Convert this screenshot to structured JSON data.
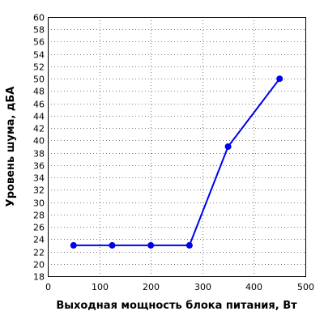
{
  "chart_data": {
    "type": "line",
    "title": "",
    "xlabel": "Выходная мощность блока питания, Вт",
    "ylabel": "Уровень шума, дБА",
    "xlim": [
      0,
      500
    ],
    "ylim": [
      18,
      60
    ],
    "xticks": [
      0,
      100,
      200,
      300,
      400,
      500
    ],
    "yticks": [
      18,
      20,
      22,
      24,
      26,
      28,
      30,
      32,
      34,
      36,
      38,
      40,
      42,
      44,
      46,
      48,
      50,
      52,
      54,
      56,
      58,
      60
    ],
    "grid": true,
    "series": [
      {
        "color": "#0000ee",
        "x": [
          50,
          125,
          200,
          275,
          350,
          450
        ],
        "y": [
          23,
          23,
          23,
          23,
          39,
          50
        ]
      }
    ]
  }
}
